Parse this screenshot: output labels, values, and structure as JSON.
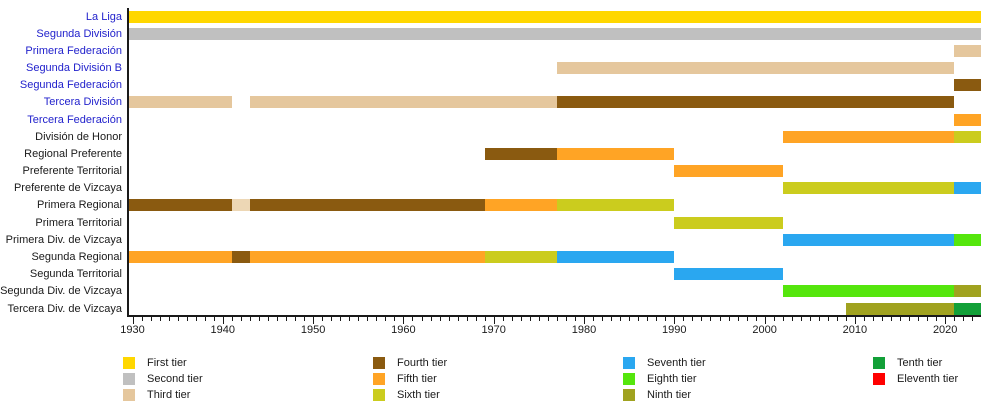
{
  "colors": {
    "background": "#FFFFFF",
    "link_label": "#2222CC",
    "plain_label": "#1A1A1A",
    "axis": "#1A1A1A"
  },
  "chart_data": {
    "type": "bar",
    "subtype": "gantt-timeline",
    "title": "",
    "xlabel": "",
    "ylabel": "",
    "grid": false,
    "x_axis": {
      "min": 1929.5,
      "max": 2024,
      "major_ticks": [
        1930,
        1940,
        1950,
        1960,
        1970,
        1980,
        1990,
        2000,
        2010,
        2020
      ],
      "minor_tick_interval": 1,
      "minor_tick_start": 1930,
      "minor_tick_end": 2023
    },
    "tiers": [
      {
        "tier": 1,
        "label": "First tier",
        "color": "#FFD700"
      },
      {
        "tier": 2,
        "label": "Second tier",
        "color": "#C0C0C0"
      },
      {
        "tier": 3,
        "label": "Third tier",
        "color": "#E5C79D"
      },
      {
        "tier": 4,
        "label": "Fourth tier",
        "color": "#8A5A10"
      },
      {
        "tier": 5,
        "label": "Fifth tier",
        "color": "#FFA425"
      },
      {
        "tier": 6,
        "label": "Sixth tier",
        "color": "#CBCC1E"
      },
      {
        "tier": 7,
        "label": "Seventh tier",
        "color": "#2AA7F0"
      },
      {
        "tier": 8,
        "label": "Eighth tier",
        "color": "#55E60D"
      },
      {
        "tier": 9,
        "label": "Ninth tier",
        "color": "#A0A21F"
      },
      {
        "tier": 10,
        "label": "Tenth tier",
        "color": "#12A038"
      },
      {
        "tier": 11,
        "label": "Eleventh tier",
        "color": "#FF0000"
      }
    ],
    "rows": [
      {
        "label": "La Liga",
        "link": true,
        "segments": [
          {
            "start": 1929.5,
            "end": 2024,
            "tier": 1
          }
        ]
      },
      {
        "label": "Segunda División",
        "link": true,
        "segments": [
          {
            "start": 1929.5,
            "end": 2024,
            "tier": 2
          }
        ]
      },
      {
        "label": "Primera Federación",
        "link": true,
        "segments": [
          {
            "start": 2021,
            "end": 2024,
            "tier": 3
          }
        ]
      },
      {
        "label": "Segunda División B",
        "link": true,
        "segments": [
          {
            "start": 1977,
            "end": 2021,
            "tier": 3
          }
        ]
      },
      {
        "label": "Segunda Federación",
        "link": true,
        "segments": [
          {
            "start": 2021,
            "end": 2024,
            "tier": 4
          }
        ]
      },
      {
        "label": "Tercera División",
        "link": true,
        "segments": [
          {
            "start": 1929.5,
            "end": 1941,
            "tier": 3
          },
          {
            "start": 1943,
            "end": 1977,
            "tier": 3
          },
          {
            "start": 1977,
            "end": 2021,
            "tier": 4
          }
        ]
      },
      {
        "label": "Tercera Federación",
        "link": true,
        "segments": [
          {
            "start": 2021,
            "end": 2024,
            "tier": 5
          }
        ]
      },
      {
        "label": "División de Honor",
        "link": false,
        "segments": [
          {
            "start": 2002,
            "end": 2021,
            "tier": 5
          },
          {
            "start": 2021,
            "end": 2024,
            "tier": 6
          }
        ]
      },
      {
        "label": "Regional Preferente",
        "link": false,
        "segments": [
          {
            "start": 1969,
            "end": 1977,
            "tier": 4
          },
          {
            "start": 1977,
            "end": 1990,
            "tier": 5
          }
        ]
      },
      {
        "label": "Preferente Territorial",
        "link": false,
        "segments": [
          {
            "start": 1990,
            "end": 2002,
            "tier": 5
          }
        ]
      },
      {
        "label": "Preferente de Vizcaya",
        "link": false,
        "segments": [
          {
            "start": 2002,
            "end": 2021,
            "tier": 6
          },
          {
            "start": 2021,
            "end": 2024,
            "tier": 7
          }
        ]
      },
      {
        "label": "Primera Regional",
        "link": false,
        "segments": [
          {
            "start": 1929.5,
            "end": 1941,
            "tier": 4
          },
          {
            "start": 1941,
            "end": 1943,
            "tier": 3,
            "color": "#EDD7B5"
          },
          {
            "start": 1943,
            "end": 1969,
            "tier": 4
          },
          {
            "start": 1969,
            "end": 1977,
            "tier": 5
          },
          {
            "start": 1977,
            "end": 1990,
            "tier": 6
          }
        ]
      },
      {
        "label": "Primera Territorial",
        "link": false,
        "segments": [
          {
            "start": 1990,
            "end": 2002,
            "tier": 6
          }
        ]
      },
      {
        "label": "Primera Div. de Vizcaya",
        "link": false,
        "segments": [
          {
            "start": 2002,
            "end": 2021,
            "tier": 7
          },
          {
            "start": 2021,
            "end": 2024,
            "tier": 8
          }
        ]
      },
      {
        "label": "Segunda Regional",
        "link": false,
        "segments": [
          {
            "start": 1929.5,
            "end": 1941,
            "tier": 5
          },
          {
            "start": 1941,
            "end": 1943,
            "tier": 4
          },
          {
            "start": 1943,
            "end": 1969,
            "tier": 5
          },
          {
            "start": 1969,
            "end": 1977,
            "tier": 6
          },
          {
            "start": 1977,
            "end": 1990,
            "tier": 7
          }
        ]
      },
      {
        "label": "Segunda Territorial",
        "link": false,
        "segments": [
          {
            "start": 1990,
            "end": 2002,
            "tier": 7
          }
        ]
      },
      {
        "label": "Segunda Div. de Vizcaya",
        "link": false,
        "segments": [
          {
            "start": 2002,
            "end": 2021,
            "tier": 8
          },
          {
            "start": 2021,
            "end": 2024,
            "tier": 9
          }
        ]
      },
      {
        "label": "Tercera Div. de Vizcaya",
        "link": false,
        "segments": [
          {
            "start": 2009,
            "end": 2021,
            "tier": 9
          },
          {
            "start": 2021,
            "end": 2024,
            "tier": 10
          }
        ]
      }
    ],
    "legend": {
      "position": "bottom",
      "columns": [
        [
          "First tier",
          "Second tier",
          "Third tier"
        ],
        [
          "Fourth tier",
          "Fifth tier",
          "Sixth tier"
        ],
        [
          "Seventh tier",
          "Eighth tier",
          "Ninth tier"
        ],
        [
          "Tenth tier",
          "Eleventh tier"
        ]
      ]
    }
  }
}
